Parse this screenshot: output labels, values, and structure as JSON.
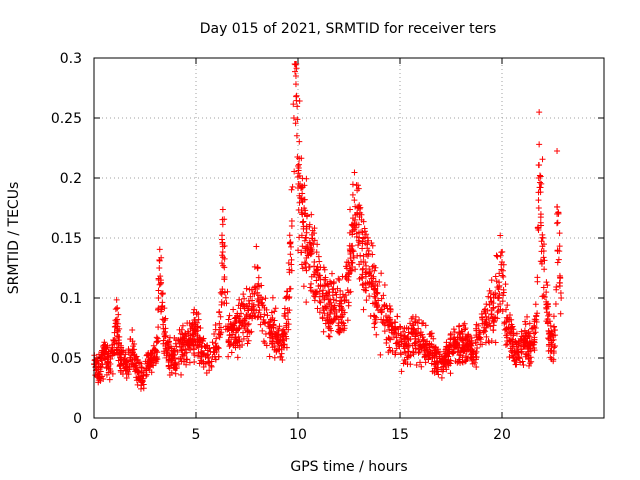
{
  "chart_data": {
    "type": "scatter",
    "title": "Day 015 of 2021, SRMTID for receiver ters",
    "xlabel": "GPS time / hours",
    "ylabel": "SRMTID / TECUs",
    "xlim": [
      0,
      25
    ],
    "ylim": [
      0,
      0.3
    ],
    "xticks": [
      0,
      5,
      10,
      15,
      20
    ],
    "xtick_labels": [
      "0",
      "5",
      "10",
      "15",
      "20"
    ],
    "yticks": [
      0,
      0.05,
      0.1,
      0.15,
      0.2,
      0.25,
      0.3
    ],
    "ytick_labels": [
      "0",
      "0.05",
      "0.1",
      "0.15",
      "0.2",
      "0.25",
      "0.3"
    ],
    "grid": true,
    "marker": "+",
    "color": "#ff0000",
    "data_extent_hours": [
      0,
      22.9
    ],
    "series": [
      {
        "name": "SRMTID",
        "x": [
          0.0,
          0.2,
          0.5,
          0.8,
          1.0,
          1.1,
          1.3,
          1.6,
          1.9,
          2.1,
          2.4,
          2.6,
          2.9,
          3.1,
          3.2,
          3.5,
          3.8,
          4.1,
          4.4,
          4.7,
          5.0,
          5.3,
          5.6,
          5.9,
          6.2,
          6.3,
          6.6,
          6.9,
          7.2,
          7.5,
          7.8,
          8.0,
          8.3,
          8.6,
          8.9,
          9.2,
          9.5,
          9.7,
          9.8,
          9.9,
          10.0,
          10.1,
          10.2,
          10.4,
          10.6,
          10.8,
          11.0,
          11.3,
          11.6,
          11.9,
          12.2,
          12.5,
          12.7,
          12.9,
          13.2,
          13.5,
          13.8,
          14.1,
          14.4,
          14.7,
          15.0,
          15.3,
          15.6,
          15.9,
          16.2,
          16.5,
          16.8,
          17.1,
          17.4,
          17.7,
          18.0,
          18.3,
          18.6,
          18.9,
          19.2,
          19.5,
          19.8,
          20.0,
          20.2,
          20.5,
          20.8,
          21.1,
          21.4,
          21.7,
          21.8,
          22.0,
          22.3,
          22.6,
          22.7,
          22.9
        ],
        "y": [
          0.045,
          0.04,
          0.055,
          0.045,
          0.065,
          0.08,
          0.05,
          0.045,
          0.055,
          0.04,
          0.035,
          0.045,
          0.05,
          0.055,
          0.125,
          0.06,
          0.05,
          0.055,
          0.06,
          0.065,
          0.07,
          0.06,
          0.05,
          0.055,
          0.07,
          0.145,
          0.065,
          0.075,
          0.08,
          0.085,
          0.09,
          0.11,
          0.08,
          0.075,
          0.07,
          0.06,
          0.09,
          0.16,
          0.25,
          0.285,
          0.21,
          0.195,
          0.17,
          0.15,
          0.14,
          0.13,
          0.11,
          0.1,
          0.09,
          0.085,
          0.09,
          0.12,
          0.16,
          0.17,
          0.13,
          0.12,
          0.1,
          0.09,
          0.08,
          0.07,
          0.065,
          0.06,
          0.07,
          0.065,
          0.06,
          0.055,
          0.05,
          0.045,
          0.055,
          0.06,
          0.065,
          0.06,
          0.055,
          0.07,
          0.08,
          0.09,
          0.1,
          0.13,
          0.08,
          0.06,
          0.055,
          0.065,
          0.06,
          0.08,
          0.2,
          0.15,
          0.07,
          0.06,
          0.17,
          0.1
        ]
      }
    ]
  }
}
